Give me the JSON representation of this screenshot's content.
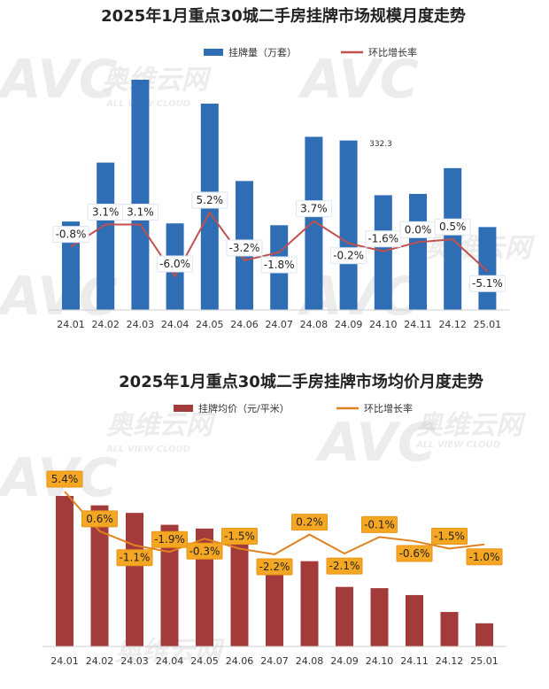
{
  "watermark": {
    "logo": "AVC",
    "brand_cn": "奥维云网",
    "brand_en": "ALL VIEW CLOUD"
  },
  "chart_data": [
    {
      "type": "bar",
      "title": "2025年1月重点30城二手房挂牌市场规模月度走势",
      "categories": [
        "24.01",
        "24.02",
        "24.03",
        "24.04",
        "24.05",
        "24.06",
        "24.07",
        "24.08",
        "24.09",
        "24.10",
        "24.11",
        "24.12",
        "25.01"
      ],
      "series": [
        {
          "name": "挂牌量（万套）",
          "kind": "bar",
          "color": "#2f6db5",
          "values": [
            318,
            350,
            395,
            317,
            382,
            340,
            316,
            364,
            362,
            332.3,
            333,
            347,
            315
          ]
        },
        {
          "name": "环比增长率",
          "kind": "line",
          "color": "#c0504d",
          "values": [
            -0.8,
            3.1,
            3.1,
            -6.0,
            5.2,
            -3.2,
            -1.8,
            3.7,
            -0.2,
            -1.6,
            0.0,
            0.5,
            -5.1
          ],
          "labels": [
            "-0.8%",
            "3.1%",
            "3.1%",
            "-6.0%",
            "5.2%",
            "-3.2%",
            "-1.8%",
            "3.7%",
            "-0.2%",
            "-1.6%",
            "0.0%",
            "0.5%",
            "-5.1%"
          ]
        }
      ],
      "value_labels": [
        {
          "index": 9,
          "text": "332.3"
        }
      ],
      "bar_axis_min": 270,
      "legend_position": "top",
      "grid": false
    },
    {
      "type": "bar",
      "title": "2025年1月重点30城二手房挂牌市场均价月度走势",
      "categories": [
        "24.01",
        "24.02",
        "24.03",
        "24.04",
        "24.05",
        "24.06",
        "24.07",
        "24.08",
        "24.09",
        "24.10",
        "24.11",
        "24.12",
        "25.01"
      ],
      "series": [
        {
          "name": "挂牌均价（元/平米）",
          "kind": "bar",
          "color": "#a33b3b",
          "values": [
            19600,
            19450,
            19330,
            19140,
            19080,
            18930,
            18520,
            18560,
            18150,
            18130,
            18020,
            17750,
            17570
          ]
        },
        {
          "name": "环比增长率",
          "kind": "line",
          "color": "#e0821f",
          "values": [
            5.4,
            0.6,
            -1.1,
            -1.9,
            -0.3,
            -1.5,
            -2.2,
            0.2,
            -2.1,
            -0.1,
            -0.6,
            -1.5,
            -1.0
          ],
          "labels": [
            "5.4%",
            "0.6%",
            "-1.1%",
            "-1.9%",
            "-0.3%",
            "-1.5%",
            "-2.2%",
            "0.2%",
            "-2.1%",
            "-0.1%",
            "-0.6%",
            "-1.5%",
            "-1.0%"
          ]
        }
      ],
      "bar_axis_min": 17200,
      "legend_position": "top",
      "grid": false
    }
  ]
}
